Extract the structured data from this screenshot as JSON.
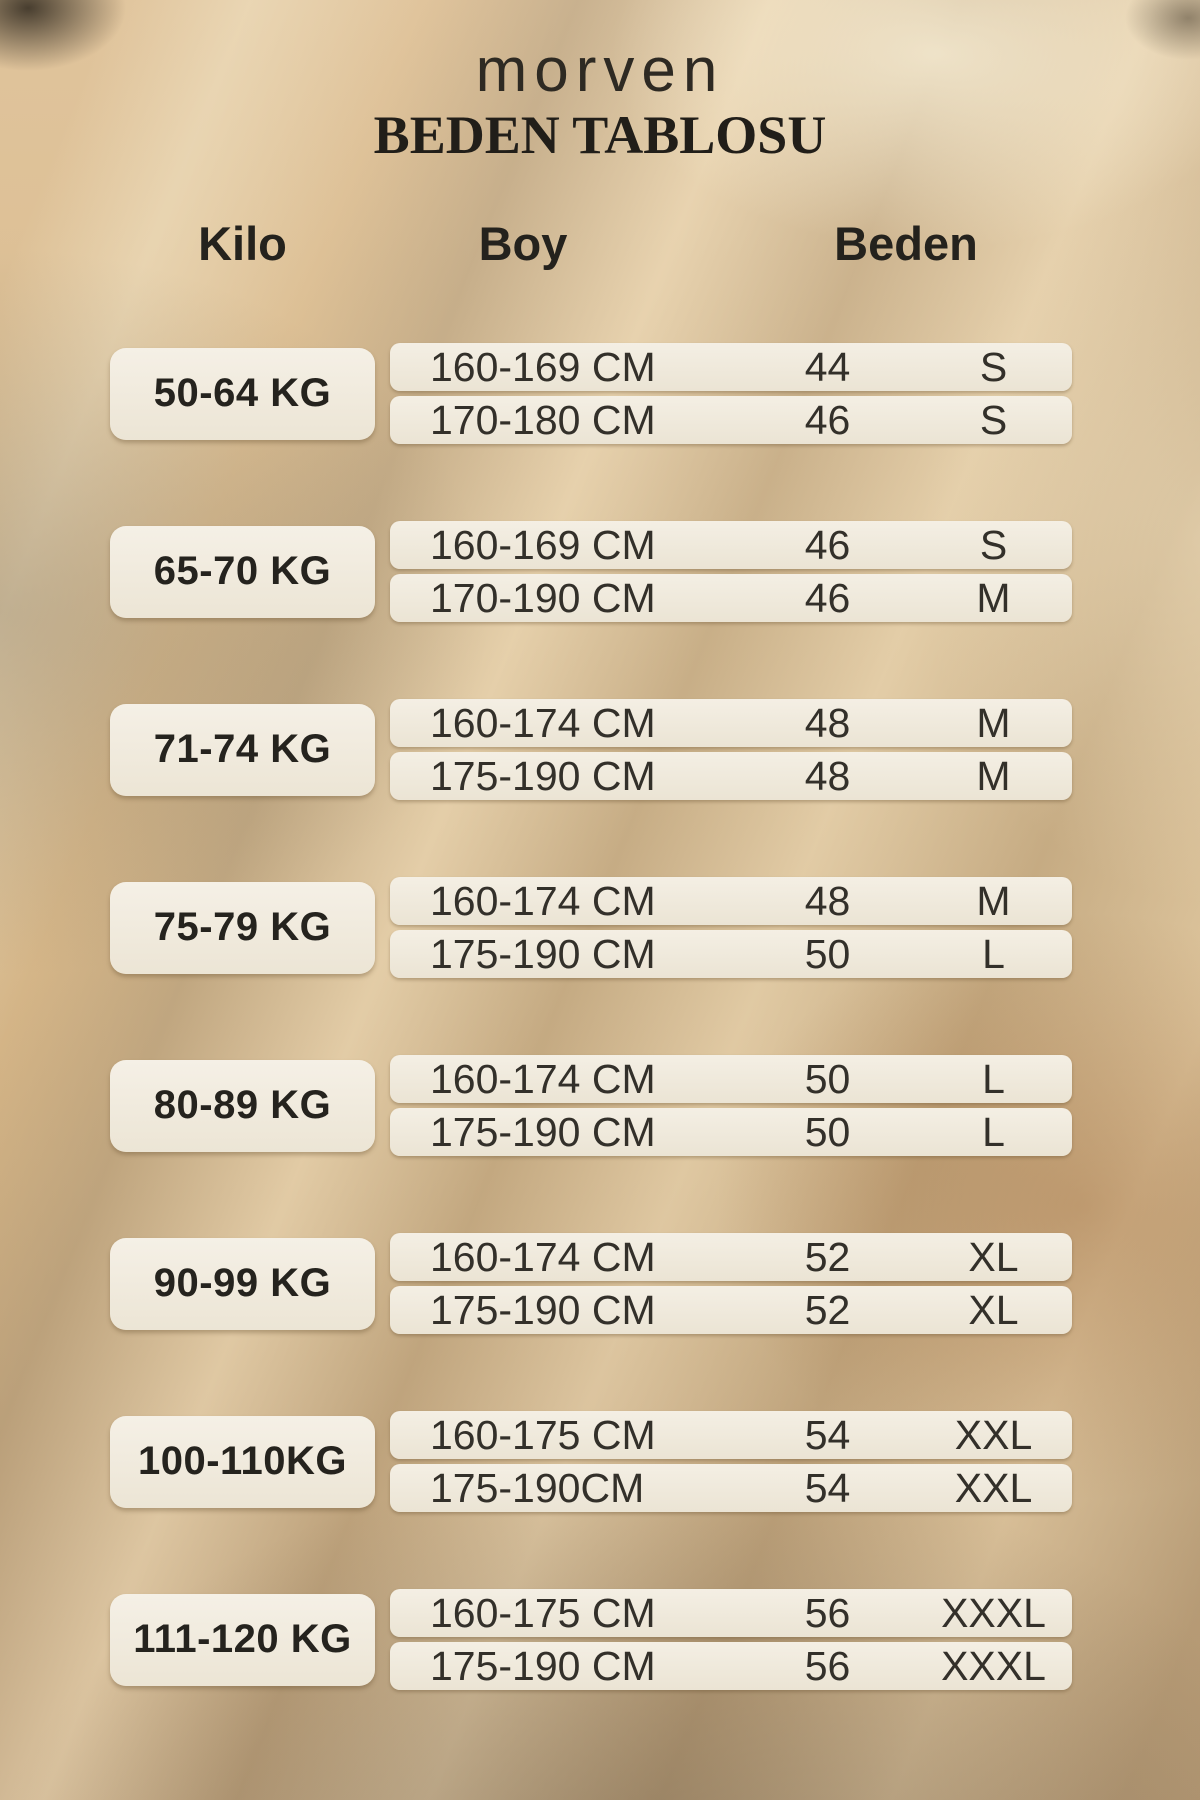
{
  "brand": "morven",
  "title": "BEDEN TABLOSU",
  "columns": {
    "kilo": "Kilo",
    "boy": "Boy",
    "beden": "Beden"
  },
  "colors": {
    "background_tan": "#d6b88c",
    "box_cream": "#f2ece0",
    "text_dark": "#2b2823"
  },
  "groups": [
    {
      "kilo": "50-64 KG",
      "rows": [
        {
          "boy": "160-169 CM",
          "beden_no": "44",
          "beden": "S"
        },
        {
          "boy": "170-180 CM",
          "beden_no": "46",
          "beden": "S"
        }
      ]
    },
    {
      "kilo": "65-70 KG",
      "rows": [
        {
          "boy": "160-169 CM",
          "beden_no": "46",
          "beden": "S"
        },
        {
          "boy": "170-190 CM",
          "beden_no": "46",
          "beden": "M"
        }
      ]
    },
    {
      "kilo": "71-74 KG",
      "rows": [
        {
          "boy": "160-174 CM",
          "beden_no": "48",
          "beden": "M"
        },
        {
          "boy": "175-190 CM",
          "beden_no": "48",
          "beden": "M"
        }
      ]
    },
    {
      "kilo": "75-79 KG",
      "rows": [
        {
          "boy": "160-174 CM",
          "beden_no": "48",
          "beden": "M"
        },
        {
          "boy": "175-190 CM",
          "beden_no": "50",
          "beden": "L"
        }
      ]
    },
    {
      "kilo": "80-89 KG",
      "rows": [
        {
          "boy": "160-174 CM",
          "beden_no": "50",
          "beden": "L"
        },
        {
          "boy": "175-190 CM",
          "beden_no": "50",
          "beden": "L"
        }
      ]
    },
    {
      "kilo": "90-99 KG",
      "rows": [
        {
          "boy": "160-174 CM",
          "beden_no": "52",
          "beden": "XL"
        },
        {
          "boy": "175-190 CM",
          "beden_no": "52",
          "beden": "XL"
        }
      ]
    },
    {
      "kilo": "100-110KG",
      "rows": [
        {
          "boy": "160-175 CM",
          "beden_no": "54",
          "beden": "XXL"
        },
        {
          "boy": "175-190CM",
          "beden_no": "54",
          "beden": "XXL"
        }
      ]
    },
    {
      "kilo": "111-120 KG",
      "rows": [
        {
          "boy": "160-175 CM",
          "beden_no": "56",
          "beden": "XXXL"
        },
        {
          "boy": "175-190 CM",
          "beden_no": "56",
          "beden": "XXXL"
        }
      ]
    }
  ]
}
